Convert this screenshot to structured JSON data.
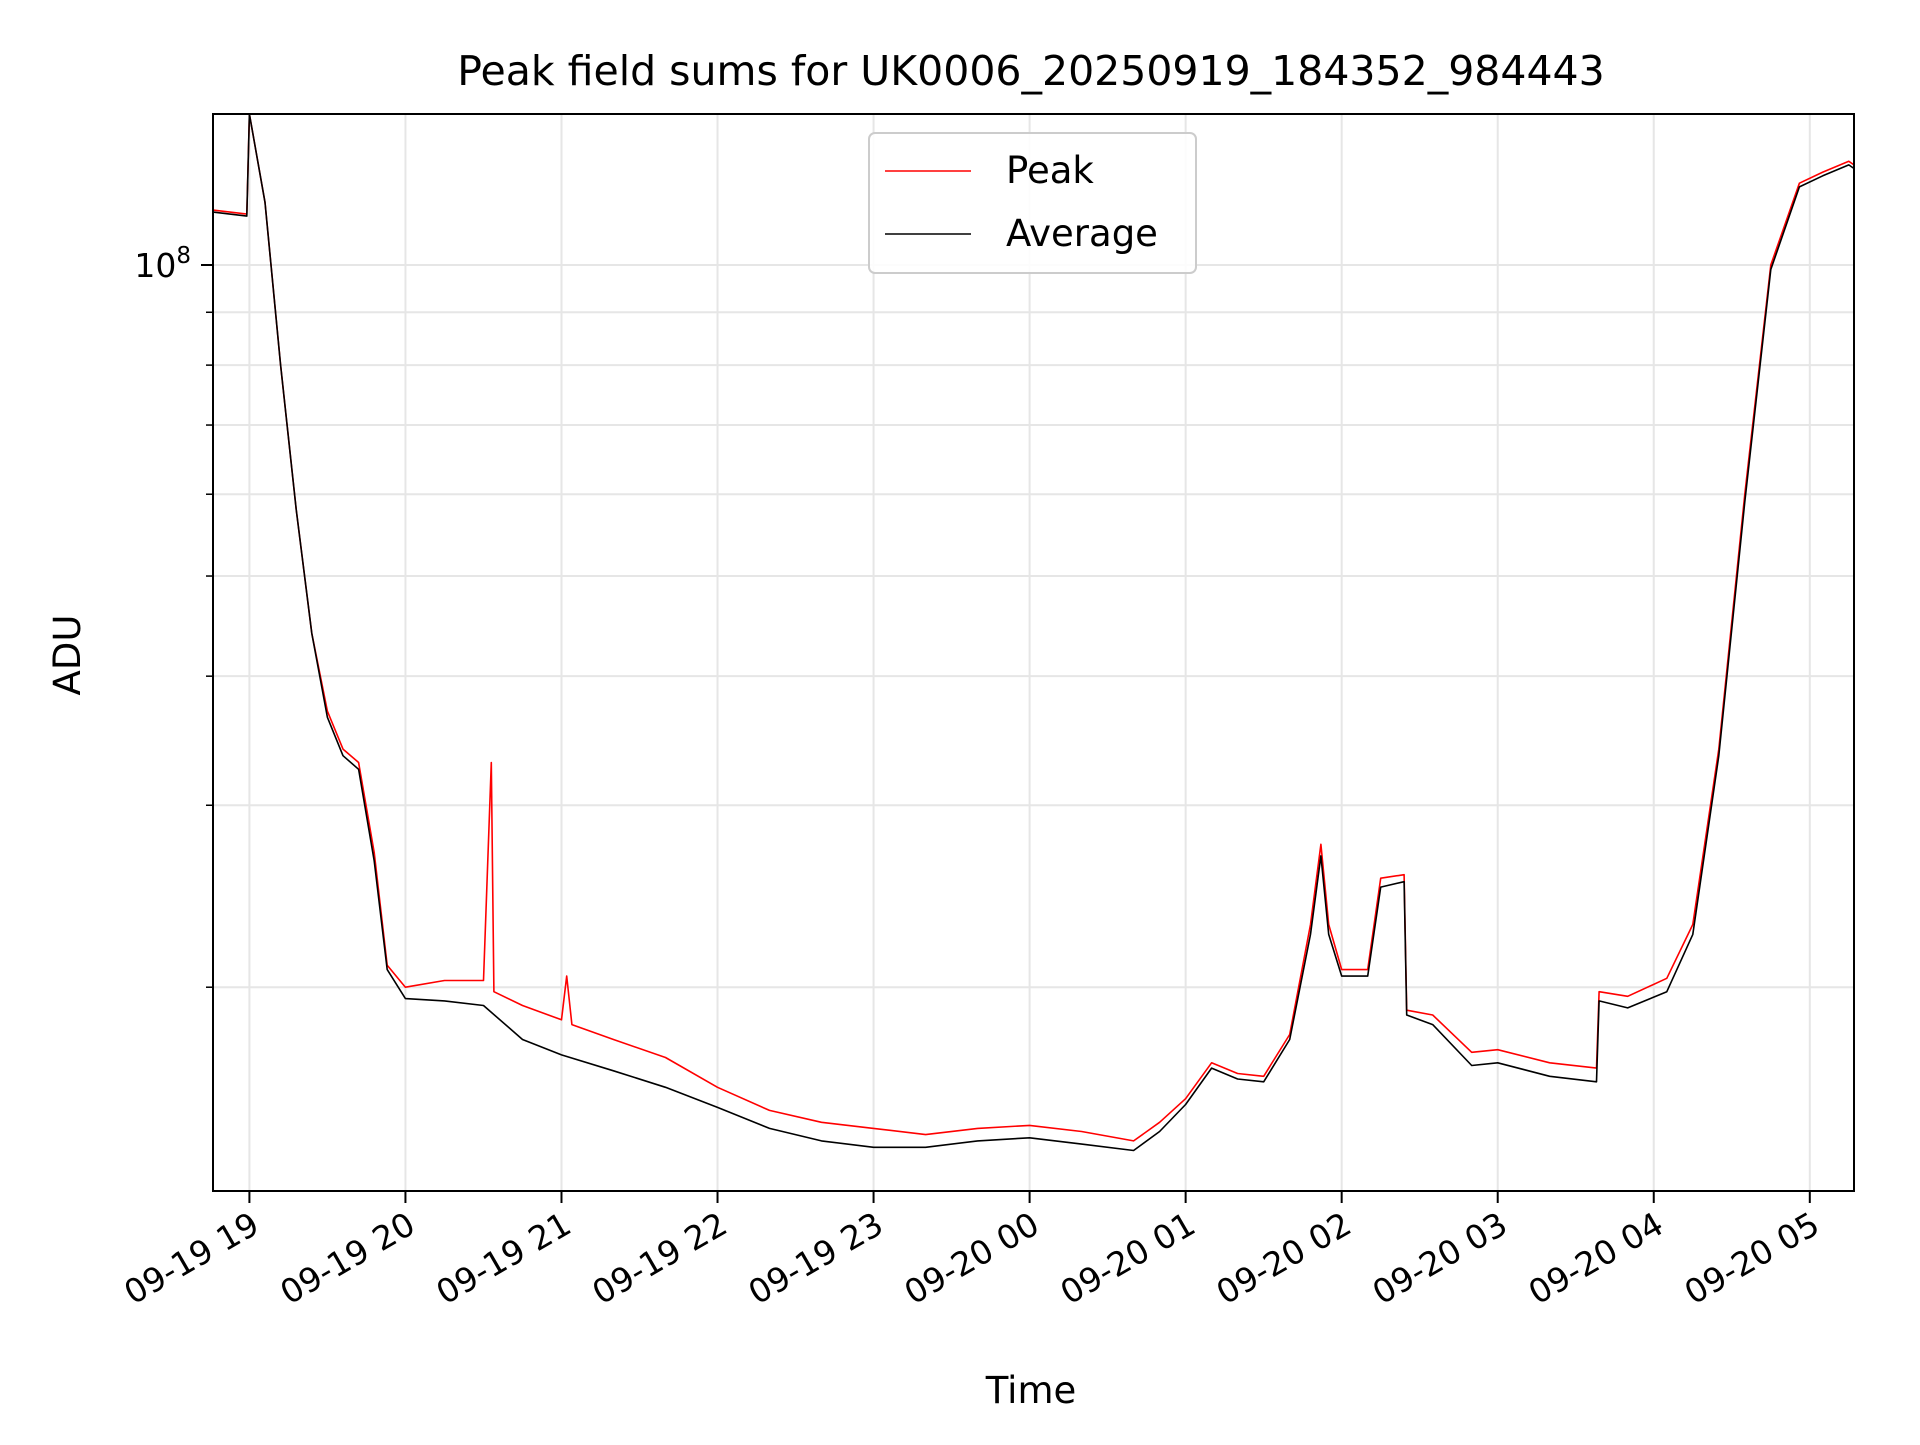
{
  "chart_data": {
    "type": "line",
    "title": "Peak field sums for UK0006_20250919_184352_984443",
    "xlabel": "Time",
    "ylabel": "ADU",
    "y_scale": "log",
    "grid": true,
    "legend_position": "top-center",
    "x_range": [
      "2025-09-19 18:46",
      "2025-09-20 05:17"
    ],
    "y_range": [
      12700000.0,
      140000000.0
    ],
    "x_ticks": [
      {
        "time": "2025-09-19 19:00",
        "label": "09-19 19"
      },
      {
        "time": "2025-09-19 20:00",
        "label": "09-19 20"
      },
      {
        "time": "2025-09-19 21:00",
        "label": "09-19 21"
      },
      {
        "time": "2025-09-19 22:00",
        "label": "09-19 22"
      },
      {
        "time": "2025-09-19 23:00",
        "label": "09-19 23"
      },
      {
        "time": "2025-09-20 00:00",
        "label": "09-20 00"
      },
      {
        "time": "2025-09-20 01:00",
        "label": "09-20 01"
      },
      {
        "time": "2025-09-20 02:00",
        "label": "09-20 02"
      },
      {
        "time": "2025-09-20 03:00",
        "label": "09-20 03"
      },
      {
        "time": "2025-09-20 04:00",
        "label": "09-20 04"
      },
      {
        "time": "2025-09-20 05:00",
        "label": "09-20 05"
      }
    ],
    "y_major_ticks": [
      {
        "value": 100000000,
        "base": "10",
        "exponent": "8"
      }
    ],
    "y_minor_ticks": [
      20000000,
      30000000,
      40000000,
      50000000,
      60000000,
      70000000,
      80000000,
      90000000
    ],
    "series": [
      {
        "name": "Peak",
        "color": "#ff0000",
        "points": [
          [
            "2025-09-19 18:46",
            113000000
          ],
          [
            "2025-09-19 18:59",
            112000000
          ],
          [
            "2025-09-19 19:00",
            140000000
          ],
          [
            "2025-09-19 19:06",
            115000000
          ],
          [
            "2025-09-19 19:12",
            80000000
          ],
          [
            "2025-09-19 19:18",
            58000000
          ],
          [
            "2025-09-19 19:24",
            44000000
          ],
          [
            "2025-09-19 19:30",
            37000000
          ],
          [
            "2025-09-19 19:36",
            34000000
          ],
          [
            "2025-09-19 19:42",
            33000000
          ],
          [
            "2025-09-19 19:48",
            27000000
          ],
          [
            "2025-09-19 19:53",
            21000000
          ],
          [
            "2025-09-19 20:00",
            20000000
          ],
          [
            "2025-09-19 20:15",
            20300000
          ],
          [
            "2025-09-19 20:30",
            20300000
          ],
          [
            "2025-09-19 20:33",
            33000000
          ],
          [
            "2025-09-19 20:34",
            19800000
          ],
          [
            "2025-09-19 20:45",
            19200000
          ],
          [
            "2025-09-19 21:00",
            18600000
          ],
          [
            "2025-09-19 21:02",
            20500000
          ],
          [
            "2025-09-19 21:04",
            18400000
          ],
          [
            "2025-09-19 21:20",
            17800000
          ],
          [
            "2025-09-19 21:40",
            17100000
          ],
          [
            "2025-09-19 22:00",
            16000000
          ],
          [
            "2025-09-19 22:20",
            15200000
          ],
          [
            "2025-09-19 22:40",
            14800000
          ],
          [
            "2025-09-19 23:00",
            14600000
          ],
          [
            "2025-09-19 23:20",
            14400000
          ],
          [
            "2025-09-19 23:40",
            14600000
          ],
          [
            "2025-09-20 00:00",
            14700000
          ],
          [
            "2025-09-20 00:20",
            14500000
          ],
          [
            "2025-09-20 00:40",
            14200000
          ],
          [
            "2025-09-20 00:50",
            14800000
          ],
          [
            "2025-09-20 01:00",
            15600000
          ],
          [
            "2025-09-20 01:10",
            16900000
          ],
          [
            "2025-09-20 01:20",
            16500000
          ],
          [
            "2025-09-20 01:30",
            16400000
          ],
          [
            "2025-09-20 01:40",
            18000000
          ],
          [
            "2025-09-20 01:48",
            23000000
          ],
          [
            "2025-09-20 01:52",
            27500000
          ],
          [
            "2025-09-20 01:55",
            23000000
          ],
          [
            "2025-09-20 02:00",
            20800000
          ],
          [
            "2025-09-20 02:10",
            20800000
          ],
          [
            "2025-09-20 02:15",
            25500000
          ],
          [
            "2025-09-20 02:24",
            25700000
          ],
          [
            "2025-09-20 02:25",
            19000000
          ],
          [
            "2025-09-20 02:35",
            18800000
          ],
          [
            "2025-09-20 02:50",
            17300000
          ],
          [
            "2025-09-20 03:00",
            17400000
          ],
          [
            "2025-09-20 03:20",
            16900000
          ],
          [
            "2025-09-20 03:38",
            16700000
          ],
          [
            "2025-09-20 03:39",
            19800000
          ],
          [
            "2025-09-20 03:50",
            19600000
          ],
          [
            "2025-09-20 04:05",
            20400000
          ],
          [
            "2025-09-20 04:15",
            23000000
          ],
          [
            "2025-09-20 04:25",
            34000000
          ],
          [
            "2025-09-20 04:35",
            60000000
          ],
          [
            "2025-09-20 04:45",
            100000000
          ],
          [
            "2025-09-20 04:56",
            120000000
          ],
          [
            "2025-09-20 05:05",
            123000000
          ],
          [
            "2025-09-20 05:15",
            126000000
          ],
          [
            "2025-09-20 05:17",
            125000000
          ]
        ]
      },
      {
        "name": "Average",
        "color": "#000000",
        "points": [
          [
            "2025-09-19 18:46",
            112500000
          ],
          [
            "2025-09-19 18:59",
            111500000
          ],
          [
            "2025-09-19 19:00",
            140000000
          ],
          [
            "2025-09-19 19:06",
            115000000
          ],
          [
            "2025-09-19 19:12",
            80000000
          ],
          [
            "2025-09-19 19:18",
            58000000
          ],
          [
            "2025-09-19 19:24",
            44000000
          ],
          [
            "2025-09-19 19:30",
            36500000
          ],
          [
            "2025-09-19 19:36",
            33500000
          ],
          [
            "2025-09-19 19:42",
            32500000
          ],
          [
            "2025-09-19 19:48",
            26500000
          ],
          [
            "2025-09-19 19:53",
            20800000
          ],
          [
            "2025-09-19 20:00",
            19500000
          ],
          [
            "2025-09-19 20:15",
            19400000
          ],
          [
            "2025-09-19 20:30",
            19200000
          ],
          [
            "2025-09-19 20:45",
            17800000
          ],
          [
            "2025-09-19 21:00",
            17200000
          ],
          [
            "2025-09-19 21:20",
            16600000
          ],
          [
            "2025-09-19 21:40",
            16000000
          ],
          [
            "2025-09-19 22:00",
            15300000
          ],
          [
            "2025-09-19 22:20",
            14600000
          ],
          [
            "2025-09-19 22:40",
            14200000
          ],
          [
            "2025-09-19 23:00",
            14000000
          ],
          [
            "2025-09-19 23:20",
            14000000
          ],
          [
            "2025-09-19 23:40",
            14200000
          ],
          [
            "2025-09-20 00:00",
            14300000
          ],
          [
            "2025-09-20 00:20",
            14100000
          ],
          [
            "2025-09-20 00:40",
            13900000
          ],
          [
            "2025-09-20 00:50",
            14500000
          ],
          [
            "2025-09-20 01:00",
            15400000
          ],
          [
            "2025-09-20 01:10",
            16700000
          ],
          [
            "2025-09-20 01:20",
            16300000
          ],
          [
            "2025-09-20 01:30",
            16200000
          ],
          [
            "2025-09-20 01:40",
            17800000
          ],
          [
            "2025-09-20 01:48",
            22500000
          ],
          [
            "2025-09-20 01:52",
            26800000
          ],
          [
            "2025-09-20 01:55",
            22500000
          ],
          [
            "2025-09-20 02:00",
            20500000
          ],
          [
            "2025-09-20 02:10",
            20500000
          ],
          [
            "2025-09-20 02:15",
            25000000
          ],
          [
            "2025-09-20 02:24",
            25300000
          ],
          [
            "2025-09-20 02:25",
            18800000
          ],
          [
            "2025-09-20 02:35",
            18400000
          ],
          [
            "2025-09-20 02:50",
            16800000
          ],
          [
            "2025-09-20 03:00",
            16900000
          ],
          [
            "2025-09-20 03:20",
            16400000
          ],
          [
            "2025-09-20 03:38",
            16200000
          ],
          [
            "2025-09-20 03:39",
            19400000
          ],
          [
            "2025-09-20 03:50",
            19100000
          ],
          [
            "2025-09-20 04:05",
            19800000
          ],
          [
            "2025-09-20 04:15",
            22500000
          ],
          [
            "2025-09-20 04:25",
            33500000
          ],
          [
            "2025-09-20 04:35",
            59000000
          ],
          [
            "2025-09-20 04:45",
            99000000
          ],
          [
            "2025-09-20 04:56",
            119000000
          ],
          [
            "2025-09-20 05:05",
            122000000
          ],
          [
            "2025-09-20 05:15",
            125000000
          ],
          [
            "2025-09-20 05:17",
            124000000
          ]
        ]
      }
    ]
  }
}
